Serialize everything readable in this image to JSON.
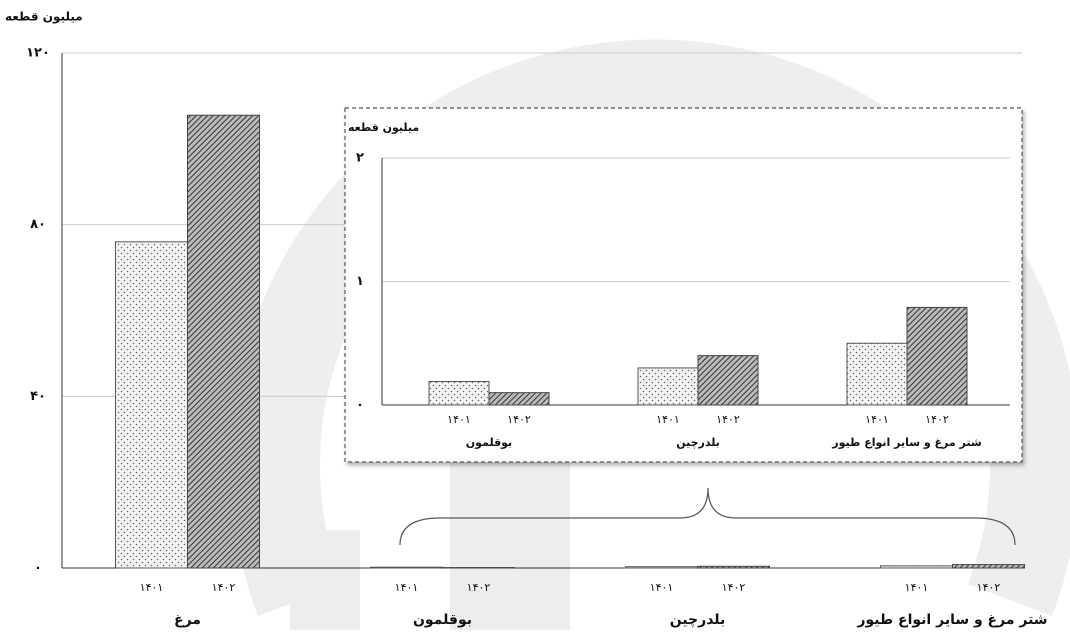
{
  "chart_data": [
    {
      "type": "bar",
      "y_label": "میلیون قطعه",
      "categories": [
        "مرغ",
        "بوقلمون",
        "بلدرچین",
        "شتر مرغ و سایر انواع طیور"
      ],
      "series": [
        {
          "name": "۱۴۰۱",
          "color": "#555",
          "pattern": "dots",
          "values": [
            76,
            0.19,
            0.3,
            0.5
          ]
        },
        {
          "name": "۱۴۰۲",
          "color": "#444",
          "pattern": "hatch",
          "values": [
            105.5,
            0.1,
            0.4,
            0.79
          ]
        }
      ],
      "ylim": [
        0,
        120
      ],
      "yticks": [
        {
          "value": 0,
          "label": "۰"
        },
        {
          "value": 40,
          "label": "۴۰"
        },
        {
          "value": 80,
          "label": "۸۰"
        },
        {
          "value": 120,
          "label": "۱۲۰"
        }
      ],
      "grid": true
    },
    {
      "type": "bar",
      "y_label": "میلیون قطعه",
      "categories": [
        "بوقلمون",
        "بلدرچین",
        "شتر مرغ و سایر انواع طیور"
      ],
      "series": [
        {
          "name": "۱۴۰۱",
          "color": "#555",
          "pattern": "dots",
          "values": [
            0.19,
            0.3,
            0.5
          ]
        },
        {
          "name": "۱۴۰۲",
          "color": "#444",
          "pattern": "hatch",
          "values": [
            0.1,
            0.4,
            0.79
          ]
        }
      ],
      "ylim": [
        0,
        2
      ],
      "yticks": [
        {
          "value": 0,
          "label": "۰"
        },
        {
          "value": 1,
          "label": "۱"
        },
        {
          "value": 2,
          "label": "۲"
        }
      ],
      "grid": true
    }
  ]
}
